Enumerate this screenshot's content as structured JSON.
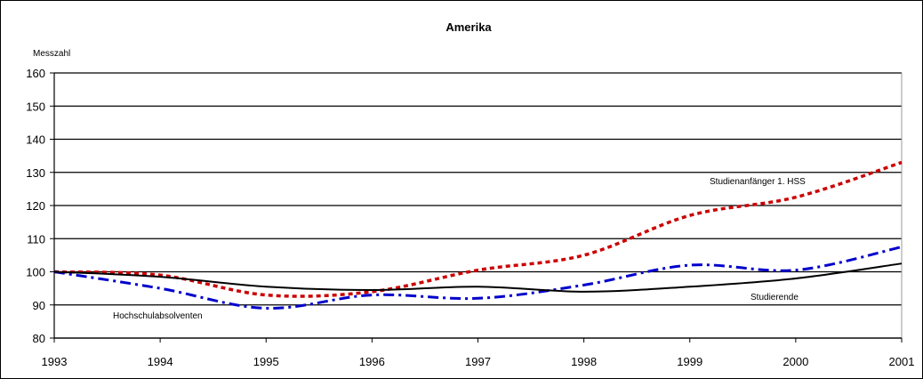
{
  "chart_data": {
    "type": "line",
    "title": "Amerika",
    "ylabel": "Messzahl",
    "xlabel": "",
    "x": [
      "1993",
      "1994",
      "1995",
      "1996",
      "1997",
      "1998",
      "1999",
      "2000",
      "2001"
    ],
    "ylim": [
      80,
      160
    ],
    "yticks": [
      80,
      90,
      100,
      110,
      120,
      130,
      140,
      150,
      160
    ],
    "grid": true,
    "series": [
      {
        "name": "Studienanfänger 1. HSS",
        "values": [
          100,
          99,
          93,
          94,
          100.5,
          105,
          117,
          122.5,
          133
        ],
        "color": "#cc0000",
        "style": "dotted"
      },
      {
        "name": "Hochschulabsolventen",
        "values": [
          100,
          95,
          89,
          93,
          92,
          96,
          102,
          100.5,
          107.5
        ],
        "color": "#0000cc",
        "style": "dash-dot"
      },
      {
        "name": "Studierende",
        "values": [
          100,
          98.5,
          95.5,
          94.5,
          95.5,
          94,
          95.5,
          98,
          102.5
        ],
        "color": "#000000",
        "style": "solid"
      }
    ]
  }
}
